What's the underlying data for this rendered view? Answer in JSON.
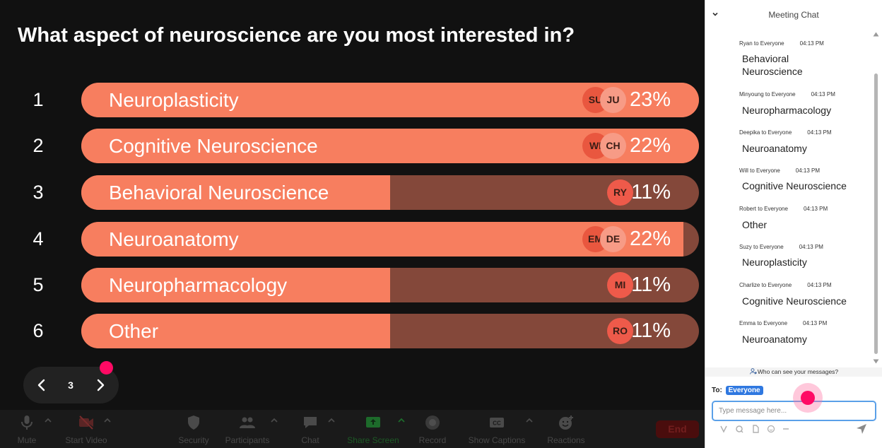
{
  "poll": {
    "question": "What aspect of neuroscience are you most interested in?",
    "options": [
      {
        "number": "1",
        "label": "Neuroplasticity",
        "percent": "23%",
        "fill": 1.0,
        "avatars": [
          "SU",
          "JU"
        ]
      },
      {
        "number": "2",
        "label": "Cognitive Neuroscience",
        "percent": "22%",
        "fill": 1.0,
        "avatars": [
          "WI",
          "CH"
        ]
      },
      {
        "number": "3",
        "label": "Behavioral Neuroscience",
        "percent": "11%",
        "fill": 0.5,
        "avatars": [
          "RY"
        ]
      },
      {
        "number": "4",
        "label": "Neuroanatomy",
        "percent": "22%",
        "fill": 0.975,
        "avatars": [
          "EM",
          "DE"
        ]
      },
      {
        "number": "5",
        "label": "Neuropharmacology",
        "percent": "11%",
        "fill": 0.5,
        "avatars": [
          "MI"
        ]
      },
      {
        "number": "6",
        "label": "Other",
        "percent": "11%",
        "fill": 0.5,
        "avatars": [
          "RO"
        ]
      }
    ]
  },
  "slide_nav": {
    "current": "3"
  },
  "toolbar": {
    "mute": "Mute",
    "start_video": "Start Video",
    "security": "Security",
    "participants": "Participants",
    "chat": "Chat",
    "share_screen": "Share Screen",
    "record": "Record",
    "show_captions": "Show Captions",
    "reactions": "Reactions",
    "end": "End"
  },
  "chat": {
    "title": "Meeting Chat",
    "messages": [
      {
        "sender": "Ryan to Everyone",
        "time": "04:13 PM",
        "text": "Behavioral Neuroscience"
      },
      {
        "sender": "Minyoung to Everyone",
        "time": "04:13 PM",
        "text": "Neuropharmacology"
      },
      {
        "sender": "Deepika to Everyone",
        "time": "04:13 PM",
        "text": "Neuroanatomy"
      },
      {
        "sender": "Will to Everyone",
        "time": "04:13 PM",
        "text": "Cognitive Neuroscience"
      },
      {
        "sender": "Robert to Everyone",
        "time": "04:13 PM",
        "text": "Other"
      },
      {
        "sender": "Suzy to Everyone",
        "time": "04:13 PM",
        "text": "Neuroplasticity"
      },
      {
        "sender": "Charlize to Everyone",
        "time": "04:13 PM",
        "text": "Cognitive Neuroscience"
      },
      {
        "sender": "Emma to Everyone",
        "time": "04:13 PM",
        "text": "Neuroanatomy"
      }
    ],
    "visibility_note": "Who can see your messages?",
    "to_label": "To:",
    "recipient": "Everyone",
    "input_placeholder": "Type message here..."
  },
  "colors": {
    "bar_fill": "#f77e5f",
    "bar_track": "#84483a",
    "accent_marker": "#ff0a64",
    "recipient_badge": "#2f78e0",
    "end_button": "#4a0d0d"
  },
  "icons": {
    "collapse": "chevron-down-icon",
    "prev": "chevron-left-icon",
    "next": "chevron-right-icon",
    "mute": "microphone-icon",
    "video": "video-off-icon",
    "security": "shield-icon",
    "participants": "people-icon",
    "chat": "chat-bubble-icon",
    "share": "share-screen-icon",
    "record": "record-icon",
    "captions": "cc-icon",
    "reactions": "smiley-add-icon",
    "send": "send-icon"
  }
}
